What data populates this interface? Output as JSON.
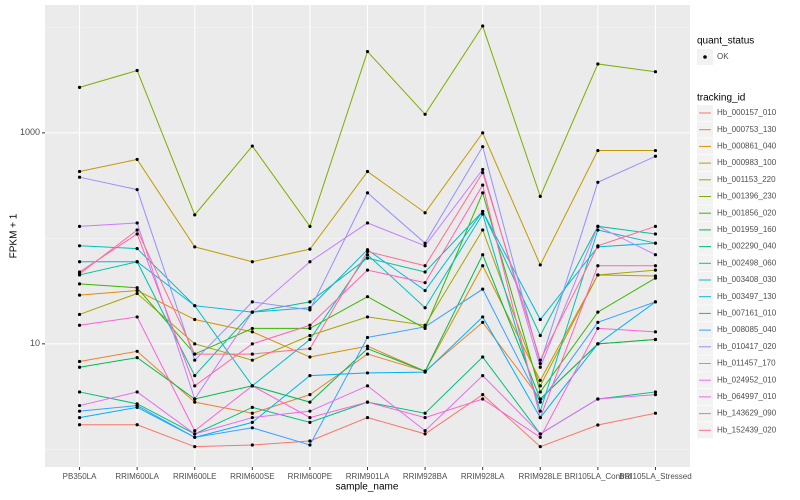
{
  "chart_data": {
    "type": "line",
    "x_label": "sample_name",
    "y_label": "FPKM + 1",
    "log_y": true,
    "grid": true,
    "categories": [
      "PB350LA",
      "RRIM600LA",
      "RRIM600LE",
      "RRIM600SE",
      "RRIM600PE",
      "RRIM901LA",
      "RRIM928BA",
      "RRIM928LA",
      "RRIM928LE",
      "BRI105LA_Control",
      "BRI105LA_Stressed"
    ],
    "ylim": [
      0.68,
      16300
    ],
    "yticks": [
      10,
      1000
    ],
    "point_legend": {
      "title": "quant_status",
      "labels": [
        "OK"
      ],
      "color": "#000000"
    },
    "legend_title": "tracking_id",
    "series": [
      {
        "name": "Hb_000157_010",
        "color": "#F8766D",
        "values": [
          1.71,
          1.71,
          1.06,
          1.1,
          1.2,
          2.0,
          1.4,
          3.3,
          1.06,
          1.7,
          2.2
        ]
      },
      {
        "name": "Hb_000753_130",
        "color": "#EA8331",
        "values": [
          6.8,
          8.5,
          2.8,
          2.2,
          3.3,
          8,
          5.5,
          16,
          3,
          10,
          11
        ]
      },
      {
        "name": "Hb_000861_040",
        "color": "#D89000",
        "values": [
          29,
          32,
          17,
          13,
          7.5,
          9.5,
          5.5,
          55,
          4.5,
          45,
          44
        ]
      },
      {
        "name": "Hb_000983_100",
        "color": "#C09B00",
        "values": [
          430,
          560,
          83,
          60,
          79,
          430,
          175,
          1000,
          56,
          680,
          680
        ]
      },
      {
        "name": "Hb_001153_220",
        "color": "#A3A500",
        "values": [
          19,
          30,
          10,
          7,
          12,
          18,
          15,
          120,
          4,
          45,
          50
        ]
      },
      {
        "name": "Hb_001396_230",
        "color": "#7CAE00",
        "values": [
          2700,
          3900,
          167,
          750,
          130,
          5900,
          1500,
          10300,
          250,
          4500,
          3800
        ]
      },
      {
        "name": "Hb_001856_020",
        "color": "#39B600",
        "values": [
          37,
          34,
          8,
          14,
          14,
          28,
          14,
          270,
          3.5,
          20,
          42
        ]
      },
      {
        "name": "Hb_001959_160",
        "color": "#00BB4E",
        "values": [
          6,
          7.4,
          3,
          4,
          2.8,
          9,
          5.5,
          70,
          3,
          10,
          11
        ]
      },
      {
        "name": "Hb_002290_040",
        "color": "#00BF7D",
        "values": [
          3.5,
          2.7,
          1.4,
          2.5,
          1.8,
          2.8,
          2.2,
          7.5,
          1.4,
          3,
          3.5
        ]
      },
      {
        "name": "Hb_002498_060",
        "color": "#00C1A3",
        "values": [
          45,
          60,
          5,
          20,
          25,
          65,
          48,
          180,
          12,
          130,
          110
        ]
      },
      {
        "name": "Hb_003408_030",
        "color": "#00BFC4",
        "values": [
          85,
          80,
          23,
          4,
          11,
          70,
          22,
          170,
          2.3,
          120,
          90
        ]
      },
      {
        "name": "Hb_003497_130",
        "color": "#00BAE0",
        "values": [
          60,
          60,
          23,
          20,
          22,
          78,
          32,
          180,
          17,
          83,
          90
        ]
      },
      {
        "name": "Hb_007161_010",
        "color": "#00B0F6",
        "values": [
          2,
          2.5,
          1.3,
          1.8,
          5,
          5.3,
          5.4,
          18,
          2,
          10,
          25
        ]
      },
      {
        "name": "Hb_008085_040",
        "color": "#35A2FF",
        "values": [
          2.3,
          2.6,
          1.3,
          1.6,
          1.1,
          11.5,
          14.5,
          33,
          2.8,
          16,
          25
        ]
      },
      {
        "name": "Hb_010417_020",
        "color": "#9590FF",
        "values": [
          380,
          290,
          7,
          25,
          21,
          270,
          90,
          740,
          6.5,
          340,
          600
        ]
      },
      {
        "name": "Hb_011457_170",
        "color": "#C77CFF",
        "values": [
          130,
          140,
          3,
          20,
          60,
          140,
          85,
          450,
          6,
          130,
          70
        ]
      },
      {
        "name": "Hb_024952_010",
        "color": "#E76BF3",
        "values": [
          2.6,
          3.5,
          1.4,
          2,
          2.3,
          4,
          1.5,
          5,
          1.4,
          3,
          3.3
        ]
      },
      {
        "name": "Hb_064997_010",
        "color": "#FA62DB",
        "values": [
          15,
          18,
          1.5,
          4,
          2,
          2.8,
          2,
          3,
          1.3,
          14,
          13
        ]
      },
      {
        "name": "Hb_143629_090",
        "color": "#FF62BC",
        "values": [
          48,
          110,
          4,
          10,
          15,
          50,
          38,
          320,
          2,
          55,
          55
        ]
      },
      {
        "name": "Hb_152439_020",
        "color": "#FF6C91",
        "values": [
          46,
          120,
          8,
          8,
          9,
          75,
          55,
          420,
          7,
          85,
          130
        ]
      }
    ]
  }
}
